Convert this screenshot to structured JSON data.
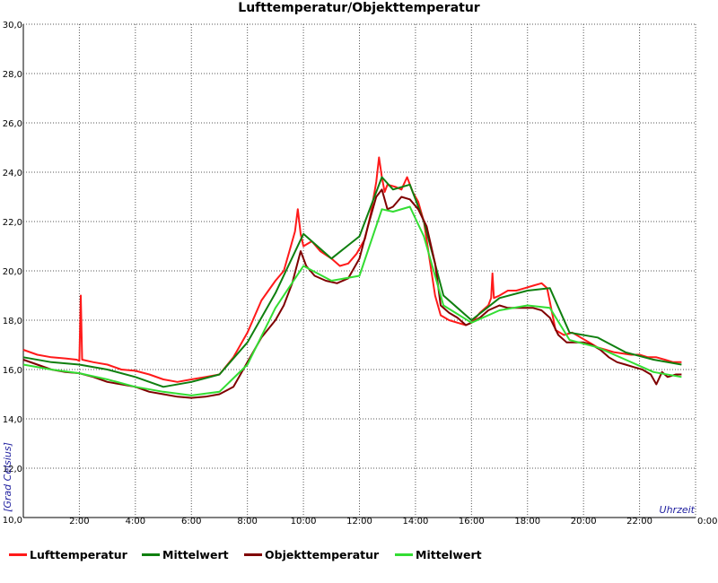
{
  "chart_data": {
    "type": "line",
    "title": "Lufttemperatur/Objekttemperatur",
    "ylabel": "[Grad Celsius]",
    "xlabel": "Uhrzeit",
    "ylim": [
      10,
      30
    ],
    "xlim": [
      0,
      24
    ],
    "grid": true,
    "legend_position": "bottom",
    "y_ticks": [
      "10,0",
      "12,0",
      "14,0",
      "16,0",
      "18,0",
      "20,0",
      "22,0",
      "24,0",
      "26,0",
      "28,0",
      "30,0"
    ],
    "x_ticks": [
      "2:00",
      "4:00",
      "6:00",
      "8:00",
      "10:00",
      "12:00",
      "14:00",
      "16:00",
      "18:00",
      "20:00",
      "22:00",
      "0:00"
    ],
    "series": [
      {
        "name": "Lufttemperatur",
        "color": "#ff1a1a",
        "x": [
          0,
          0.5,
          1,
          1.5,
          1.9,
          2.0,
          2.05,
          2.1,
          2.5,
          3,
          3.5,
          4,
          4.5,
          5,
          5.5,
          6,
          6.5,
          7,
          7.5,
          8,
          8.5,
          9,
          9.3,
          9.5,
          9.7,
          9.8,
          9.9,
          10,
          10.3,
          10.6,
          11,
          11.3,
          11.6,
          11.9,
          12.2,
          12.4,
          12.6,
          12.7,
          12.8,
          12.9,
          13,
          13.3,
          13.5,
          13.7,
          13.9,
          14.1,
          14.3,
          14.5,
          14.7,
          14.9,
          15.2,
          15.5,
          15.8,
          16,
          16.3,
          16.6,
          16.7,
          16.75,
          16.8,
          17,
          17.3,
          17.6,
          17.9,
          18.2,
          18.5,
          18.7,
          19,
          19.3,
          19.6,
          19.9,
          20.2,
          20.5,
          20.8,
          21.1,
          21.4,
          21.7,
          22,
          22.3,
          22.6,
          22.9,
          23.2,
          23.5
        ],
        "values": [
          16.8,
          16.6,
          16.5,
          16.45,
          16.4,
          16.35,
          19.0,
          16.4,
          16.3,
          16.2,
          16.0,
          15.95,
          15.8,
          15.6,
          15.5,
          15.6,
          15.7,
          15.8,
          16.5,
          17.5,
          18.8,
          19.6,
          20.0,
          20.8,
          21.6,
          22.5,
          21.5,
          21.0,
          21.2,
          20.8,
          20.5,
          20.2,
          20.3,
          20.7,
          21.3,
          22.3,
          23.6,
          24.6,
          23.8,
          23.2,
          23.5,
          23.4,
          23.3,
          23.8,
          23.2,
          22.8,
          22.0,
          20.5,
          19.0,
          18.2,
          18.0,
          17.9,
          17.8,
          17.9,
          18.3,
          18.6,
          18.9,
          19.9,
          18.9,
          19.0,
          19.2,
          19.2,
          19.3,
          19.4,
          19.5,
          19.3,
          17.6,
          17.4,
          17.5,
          17.3,
          17.1,
          16.9,
          16.8,
          16.7,
          16.65,
          16.6,
          16.6,
          16.5,
          16.5,
          16.4,
          16.3,
          16.3
        ]
      },
      {
        "name": "Mittelwert",
        "color": "#0f7f0f",
        "x": [
          0,
          1,
          2,
          3,
          4,
          5,
          6,
          7,
          8,
          9,
          10,
          11,
          12,
          12.8,
          13.2,
          13.8,
          14.3,
          15,
          16,
          17,
          18,
          18.8,
          19.5,
          20.5,
          21.5,
          22.5,
          23.5
        ],
        "values": [
          16.5,
          16.3,
          16.2,
          16.0,
          15.7,
          15.3,
          15.5,
          15.8,
          17.1,
          19.1,
          21.5,
          20.5,
          21.4,
          23.8,
          23.3,
          23.5,
          22.0,
          19.0,
          18.0,
          18.9,
          19.2,
          19.3,
          17.5,
          17.3,
          16.7,
          16.4,
          16.2
        ]
      },
      {
        "name": "Objekttemperatur",
        "color": "#7f0000",
        "x": [
          0,
          0.5,
          1,
          1.5,
          2,
          2.5,
          3,
          3.5,
          4,
          4.5,
          5,
          5.5,
          6,
          6.5,
          7,
          7.5,
          8,
          8.5,
          9,
          9.3,
          9.6,
          9.9,
          10.1,
          10.4,
          10.8,
          11.2,
          11.6,
          12,
          12.3,
          12.6,
          12.8,
          13,
          13.2,
          13.5,
          13.8,
          14.1,
          14.4,
          14.7,
          14.9,
          15.2,
          15.5,
          15.8,
          16,
          16.3,
          16.6,
          17,
          17.3,
          17.6,
          17.9,
          18.2,
          18.5,
          18.8,
          19.1,
          19.4,
          19.7,
          20,
          20.3,
          20.6,
          20.9,
          21.2,
          21.5,
          21.8,
          22.1,
          22.4,
          22.6,
          22.8,
          23,
          23.3,
          23.5
        ],
        "values": [
          16.4,
          16.2,
          16.0,
          15.9,
          15.85,
          15.7,
          15.5,
          15.4,
          15.3,
          15.1,
          15.0,
          14.9,
          14.85,
          14.9,
          15.0,
          15.3,
          16.3,
          17.3,
          18.0,
          18.6,
          19.5,
          20.8,
          20.2,
          19.8,
          19.6,
          19.5,
          19.7,
          20.5,
          21.8,
          23.0,
          23.3,
          22.5,
          22.6,
          23.0,
          22.9,
          22.5,
          21.8,
          20.3,
          18.6,
          18.3,
          18.1,
          17.8,
          17.9,
          18.1,
          18.4,
          18.6,
          18.5,
          18.5,
          18.5,
          18.5,
          18.4,
          18.1,
          17.4,
          17.1,
          17.1,
          17.1,
          17.0,
          16.8,
          16.5,
          16.3,
          16.2,
          16.1,
          16.0,
          15.8,
          15.4,
          15.9,
          15.7,
          15.8,
          15.8
        ]
      },
      {
        "name": "Mittelwert",
        "color": "#33dd33",
        "x": [
          0,
          1,
          2,
          3,
          4,
          5,
          6,
          7,
          8,
          9,
          10,
          11,
          12,
          12.8,
          13.2,
          13.8,
          14.3,
          15,
          16,
          17,
          18,
          18.8,
          19.5,
          20.5,
          21.5,
          22.5,
          23.5
        ],
        "values": [
          16.2,
          16.0,
          15.85,
          15.6,
          15.3,
          15.1,
          14.95,
          15.1,
          16.2,
          18.5,
          20.2,
          19.6,
          19.8,
          22.5,
          22.4,
          22.6,
          21.4,
          18.6,
          17.9,
          18.4,
          18.6,
          18.5,
          17.2,
          16.9,
          16.4,
          15.9,
          15.7
        ]
      }
    ]
  }
}
